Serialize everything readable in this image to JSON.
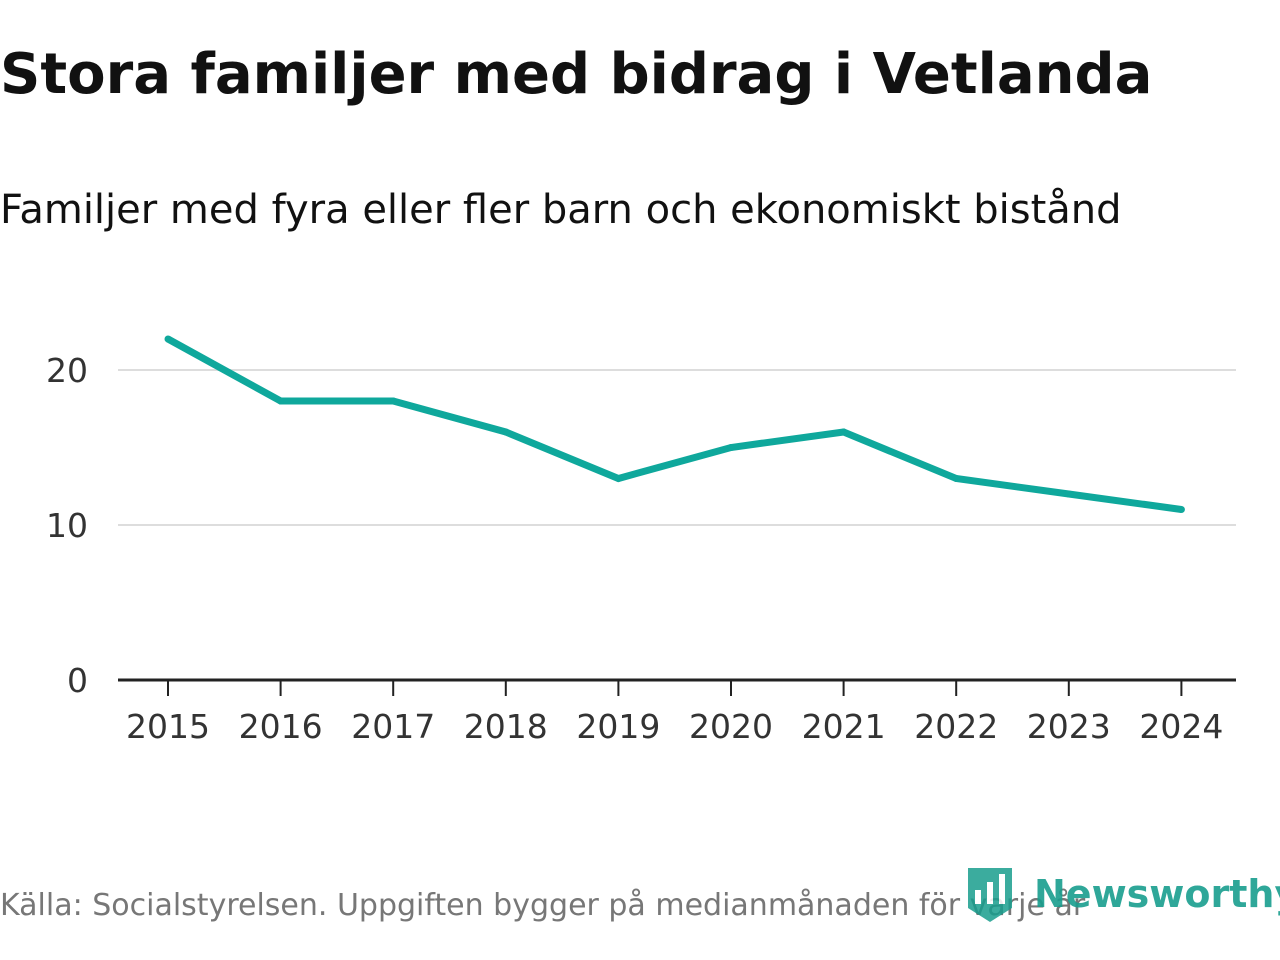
{
  "header": {
    "title": "Stora familjer med bidrag i Vetlanda",
    "subtitle": "Familjer med fyra eller fler barn och ekonomiskt bistånd"
  },
  "chart_data": {
    "type": "line",
    "title": "Stora familjer med bidrag i Vetlanda",
    "subtitle": "Familjer med fyra eller fler barn och ekonomiskt bistånd",
    "categories": [
      "2015",
      "2016",
      "2017",
      "2018",
      "2019",
      "2020",
      "2021",
      "2022",
      "2023",
      "2024"
    ],
    "series": [
      {
        "name": "Familjer med fyra eller fler barn och ekonomiskt bistånd",
        "values": [
          22,
          18,
          18,
          16,
          13,
          15,
          16,
          13,
          12,
          11
        ],
        "color": "#0fa89c"
      }
    ],
    "xlabel": "",
    "ylabel": "",
    "ylim": [
      0,
      25
    ],
    "yticks": [
      0,
      10,
      20
    ],
    "grid": true,
    "legend": "none"
  },
  "footer": {
    "source": "Källa: Socialstyrelsen. Uppgiften bygger på medianmånaden för varje år",
    "brand": "Newsworthy",
    "brand_icon": "newsworthy-logo-icon"
  },
  "colors": {
    "line": "#0fa89c",
    "grid": "#dddddd",
    "axis": "#222222",
    "text": "#111111",
    "tick_text": "#333333",
    "source_text": "#777777",
    "brand": "#199e8e"
  }
}
